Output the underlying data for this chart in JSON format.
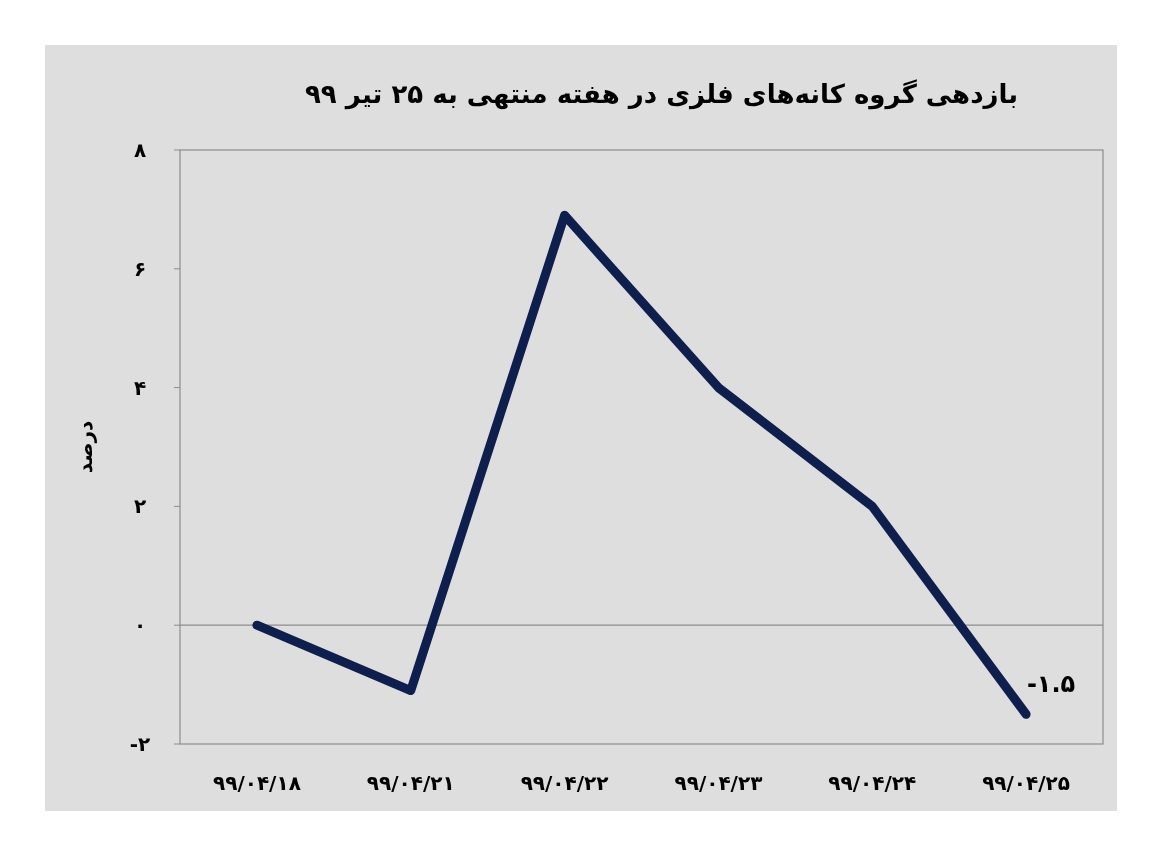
{
  "chart_data": {
    "type": "line",
    "title": "بازدهی گروه کانه‌های فلزی در هفته منتهی به ۲۵ تیر ۹۹",
    "ylabel": "درصد",
    "categories": [
      "۹۹/۰۴/۱۸",
      "۹۹/۰۴/۲۱",
      "۹۹/۰۴/۲۲",
      "۹۹/۰۴/۲۳",
      "۹۹/۰۴/۲۴",
      "۹۹/۰۴/۲۵"
    ],
    "series": [
      {
        "color": "#0e1f4e",
        "values": [
          0,
          -1.1,
          6.9,
          4.0,
          2.0,
          -1.5
        ],
        "value_labels": [
          null,
          null,
          null,
          null,
          null,
          "-۱.۵"
        ]
      }
    ],
    "ylim": [
      -2,
      8
    ],
    "yticks": [
      {
        "value": -2,
        "label": "-۲"
      },
      {
        "value": 0,
        "label": "۰"
      },
      {
        "value": 2,
        "label": "۲"
      },
      {
        "value": 4,
        "label": "۴"
      },
      {
        "value": 6,
        "label": "۶"
      },
      {
        "value": 8,
        "label": "۸"
      }
    ],
    "ref_lines": [
      {
        "axis": "y",
        "value": 0,
        "color": "#8c8c8c"
      }
    ]
  }
}
